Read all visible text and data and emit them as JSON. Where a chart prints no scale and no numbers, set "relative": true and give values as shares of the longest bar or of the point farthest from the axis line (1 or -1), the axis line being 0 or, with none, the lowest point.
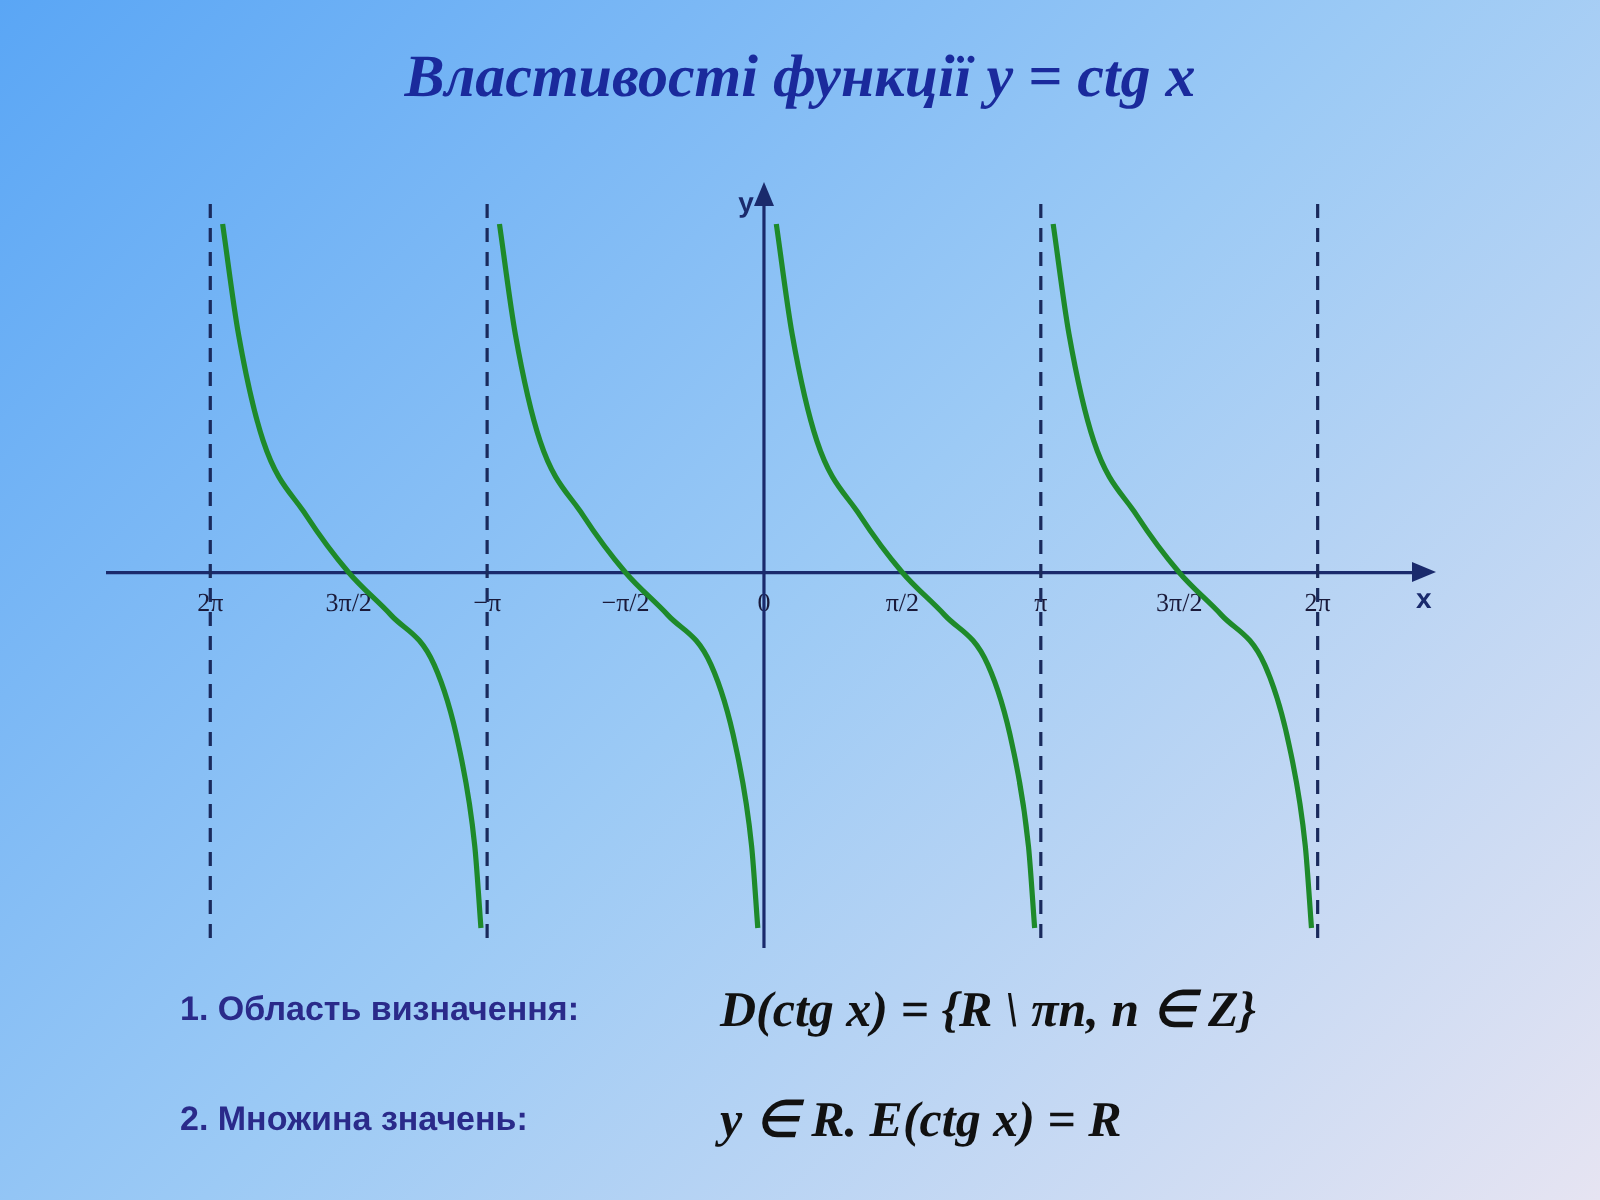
{
  "chart_data": {
    "type": "line",
    "title": "Властивості функції y = ctg x",
    "xlabel": "x",
    "ylabel": "y",
    "relative": true,
    "xlim": [
      -7.44,
      7.35
    ],
    "xticks": [
      {
        "value": -6.28,
        "label": "2π"
      },
      {
        "value": -4.71,
        "label": "3π/2"
      },
      {
        "value": -3.14,
        "label": "−π"
      },
      {
        "value": -1.57,
        "label": "−π/2"
      },
      0,
      {
        "value": 1.57,
        "label": "π/2"
      },
      {
        "value": 3.14,
        "label": "π"
      },
      {
        "value": 4.71,
        "label": "3π/2"
      },
      {
        "value": 6.28,
        "label": "2π"
      }
    ],
    "series": [
      {
        "color": "#1e8a2a",
        "x": [
          -6.14,
          -5.96,
          -5.68,
          -5.19,
          -4.71,
          -4.23,
          -3.74,
          -3.46,
          -3.28,
          -3.21
        ],
        "values": [
          0.98,
          0.67,
          0.37,
          0.16,
          0,
          -0.12,
          -0.26,
          -0.49,
          -0.77,
          -1
        ]
      },
      {
        "color": "#1e8a2a",
        "x": [
          -3.0,
          -2.82,
          -2.54,
          -2.05,
          -1.57,
          -1.09,
          -0.6,
          -0.32,
          -0.14,
          -0.07
        ],
        "values": [
          0.98,
          0.67,
          0.37,
          0.16,
          0,
          -0.12,
          -0.26,
          -0.49,
          -0.77,
          -1
        ]
      },
      {
        "color": "#1e8a2a",
        "x": [
          0.14,
          0.32,
          0.6,
          1.09,
          1.57,
          2.05,
          2.54,
          2.82,
          3.0,
          3.07
        ],
        "values": [
          0.98,
          0.67,
          0.37,
          0.16,
          0,
          -0.12,
          -0.26,
          -0.49,
          -0.77,
          -1
        ]
      },
      {
        "color": "#1e8a2a",
        "x": [
          3.28,
          3.46,
          3.74,
          4.23,
          4.71,
          5.19,
          5.68,
          5.96,
          6.14,
          6.21
        ],
        "values": [
          0.98,
          0.67,
          0.37,
          0.16,
          0,
          -0.12,
          -0.26,
          -0.49,
          -0.77,
          -1
        ]
      }
    ],
    "ref_lines": [
      {
        "axis": "x",
        "value": 0,
        "line_style": "solid",
        "color": "#1a2a6c"
      },
      {
        "axis": "x",
        "value": -6.28,
        "line_style": "dashed",
        "color": "#1a2a5c"
      },
      {
        "axis": "x",
        "value": -3.14,
        "line_style": "dashed",
        "color": "#1a2a5c"
      },
      {
        "axis": "x",
        "value": 3.14,
        "line_style": "dashed",
        "color": "#1a2a5c"
      },
      {
        "axis": "x",
        "value": 6.28,
        "line_style": "dashed",
        "color": "#1a2a5c"
      }
    ],
    "marker": "none",
    "grid": false,
    "legend": false,
    "annotations": [
      "1. Область визначення:",
      "D(ctg x) = {R \\ πn, n ∈ Z}",
      "2. Множина значень:",
      "y ∈ R.   E(ctg x) = R"
    ]
  }
}
